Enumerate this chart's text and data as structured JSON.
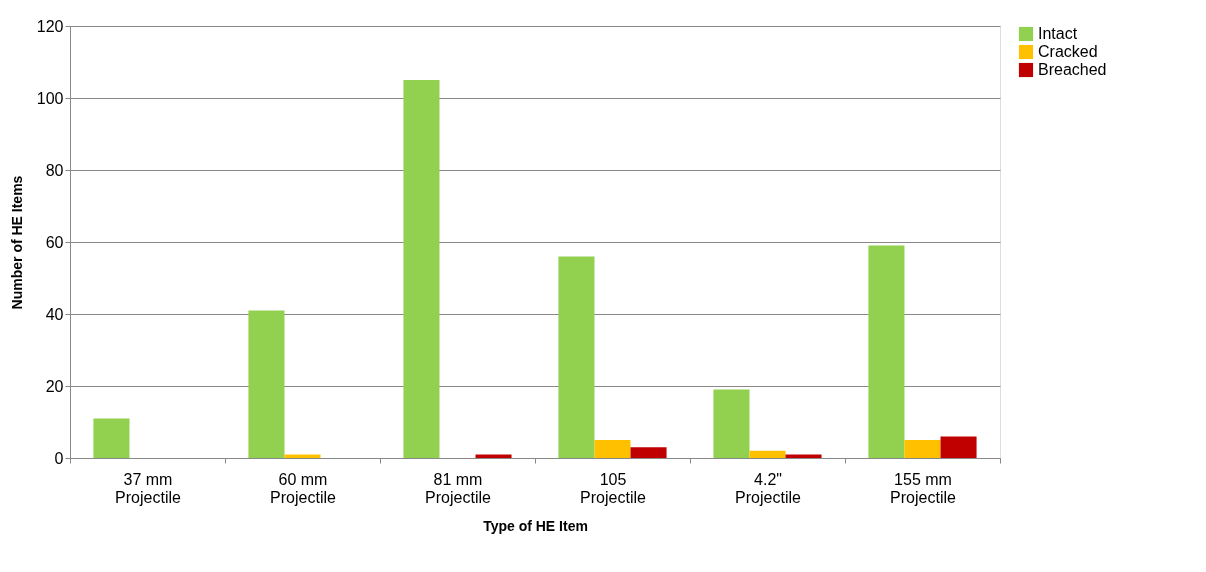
{
  "chart_data": {
    "type": "bar",
    "xlabel": "Type of HE Item",
    "ylabel": "Number of HE Items",
    "categories": [
      "37 mm Projectile",
      "60 mm Projectile",
      "81 mm Projectile",
      "105 Projectile",
      "4.2\" Projectile",
      "155 mm Projectile"
    ],
    "series": [
      {
        "name": "Intact",
        "color": "#92d050",
        "values": [
          11,
          41,
          105,
          56,
          19,
          59
        ]
      },
      {
        "name": "Cracked",
        "color": "#ffc000",
        "values": [
          0,
          1,
          0,
          5,
          2,
          5
        ]
      },
      {
        "name": "Breached",
        "color": "#c00000",
        "values": [
          0,
          0,
          1,
          3,
          1,
          6
        ]
      }
    ],
    "ylim": [
      0,
      120
    ],
    "yticks": [
      0,
      20,
      40,
      60,
      80,
      100,
      120
    ],
    "grid": "y",
    "legend": "right"
  }
}
